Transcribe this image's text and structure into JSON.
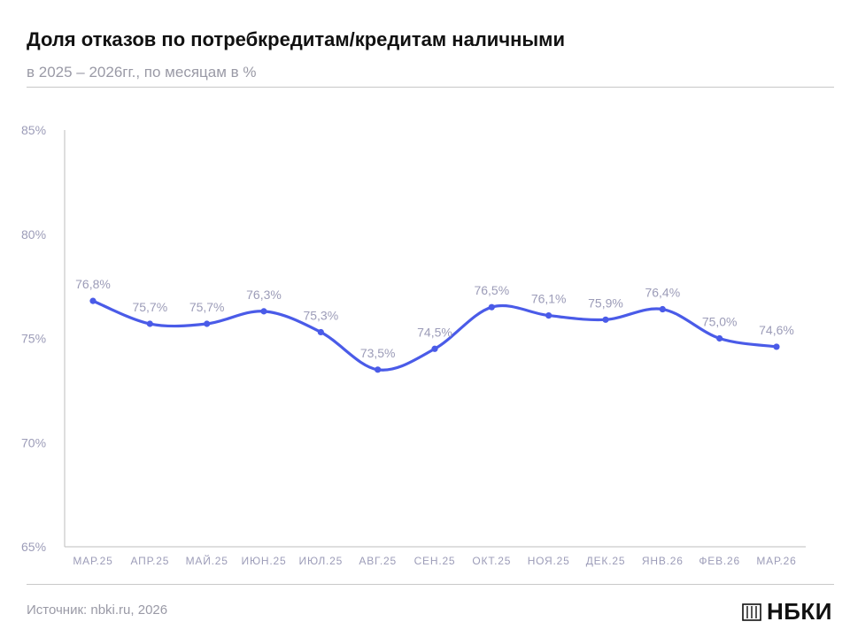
{
  "header": {
    "title": "Доля отказов по потребкредитам/кредитам наличными",
    "subtitle": "в 2025 – 2026гг., по месяцам в %"
  },
  "footer": {
    "source": "Источник: nbki.ru, 2026",
    "logo_text": "НБКИ"
  },
  "colors": {
    "line": "#4a5be8",
    "label": "#9c9cb8",
    "axis": "#bdbdbd"
  },
  "chart_data": {
    "type": "line",
    "categories": [
      "МАР.25",
      "АПР.25",
      "МАЙ.25",
      "ИЮН.25",
      "ИЮЛ.25",
      "АВГ.25",
      "СЕН.25",
      "ОКТ.25",
      "НОЯ.25",
      "ДЕК.25",
      "ЯНВ.26",
      "ФЕВ.26",
      "МАР.26"
    ],
    "series": [
      {
        "values": [
          76.8,
          75.7,
          75.7,
          76.3,
          75.3,
          73.5,
          74.5,
          76.5,
          76.1,
          75.9,
          76.4,
          75.0,
          74.6
        ],
        "labels": [
          "76,8%",
          "75,7%",
          "75,7%",
          "76,3%",
          "75,3%",
          "73,5%",
          "74,5%",
          "76,5%",
          "76,1%",
          "75,9%",
          "76,4%",
          "75,0%",
          "74,6%"
        ]
      }
    ],
    "ylim": [
      65,
      85
    ],
    "yticks": [
      85,
      80,
      75,
      70,
      65
    ],
    "ytick_labels": [
      "85%",
      "80%",
      "75%",
      "70%",
      "65%"
    ],
    "grid": false
  }
}
